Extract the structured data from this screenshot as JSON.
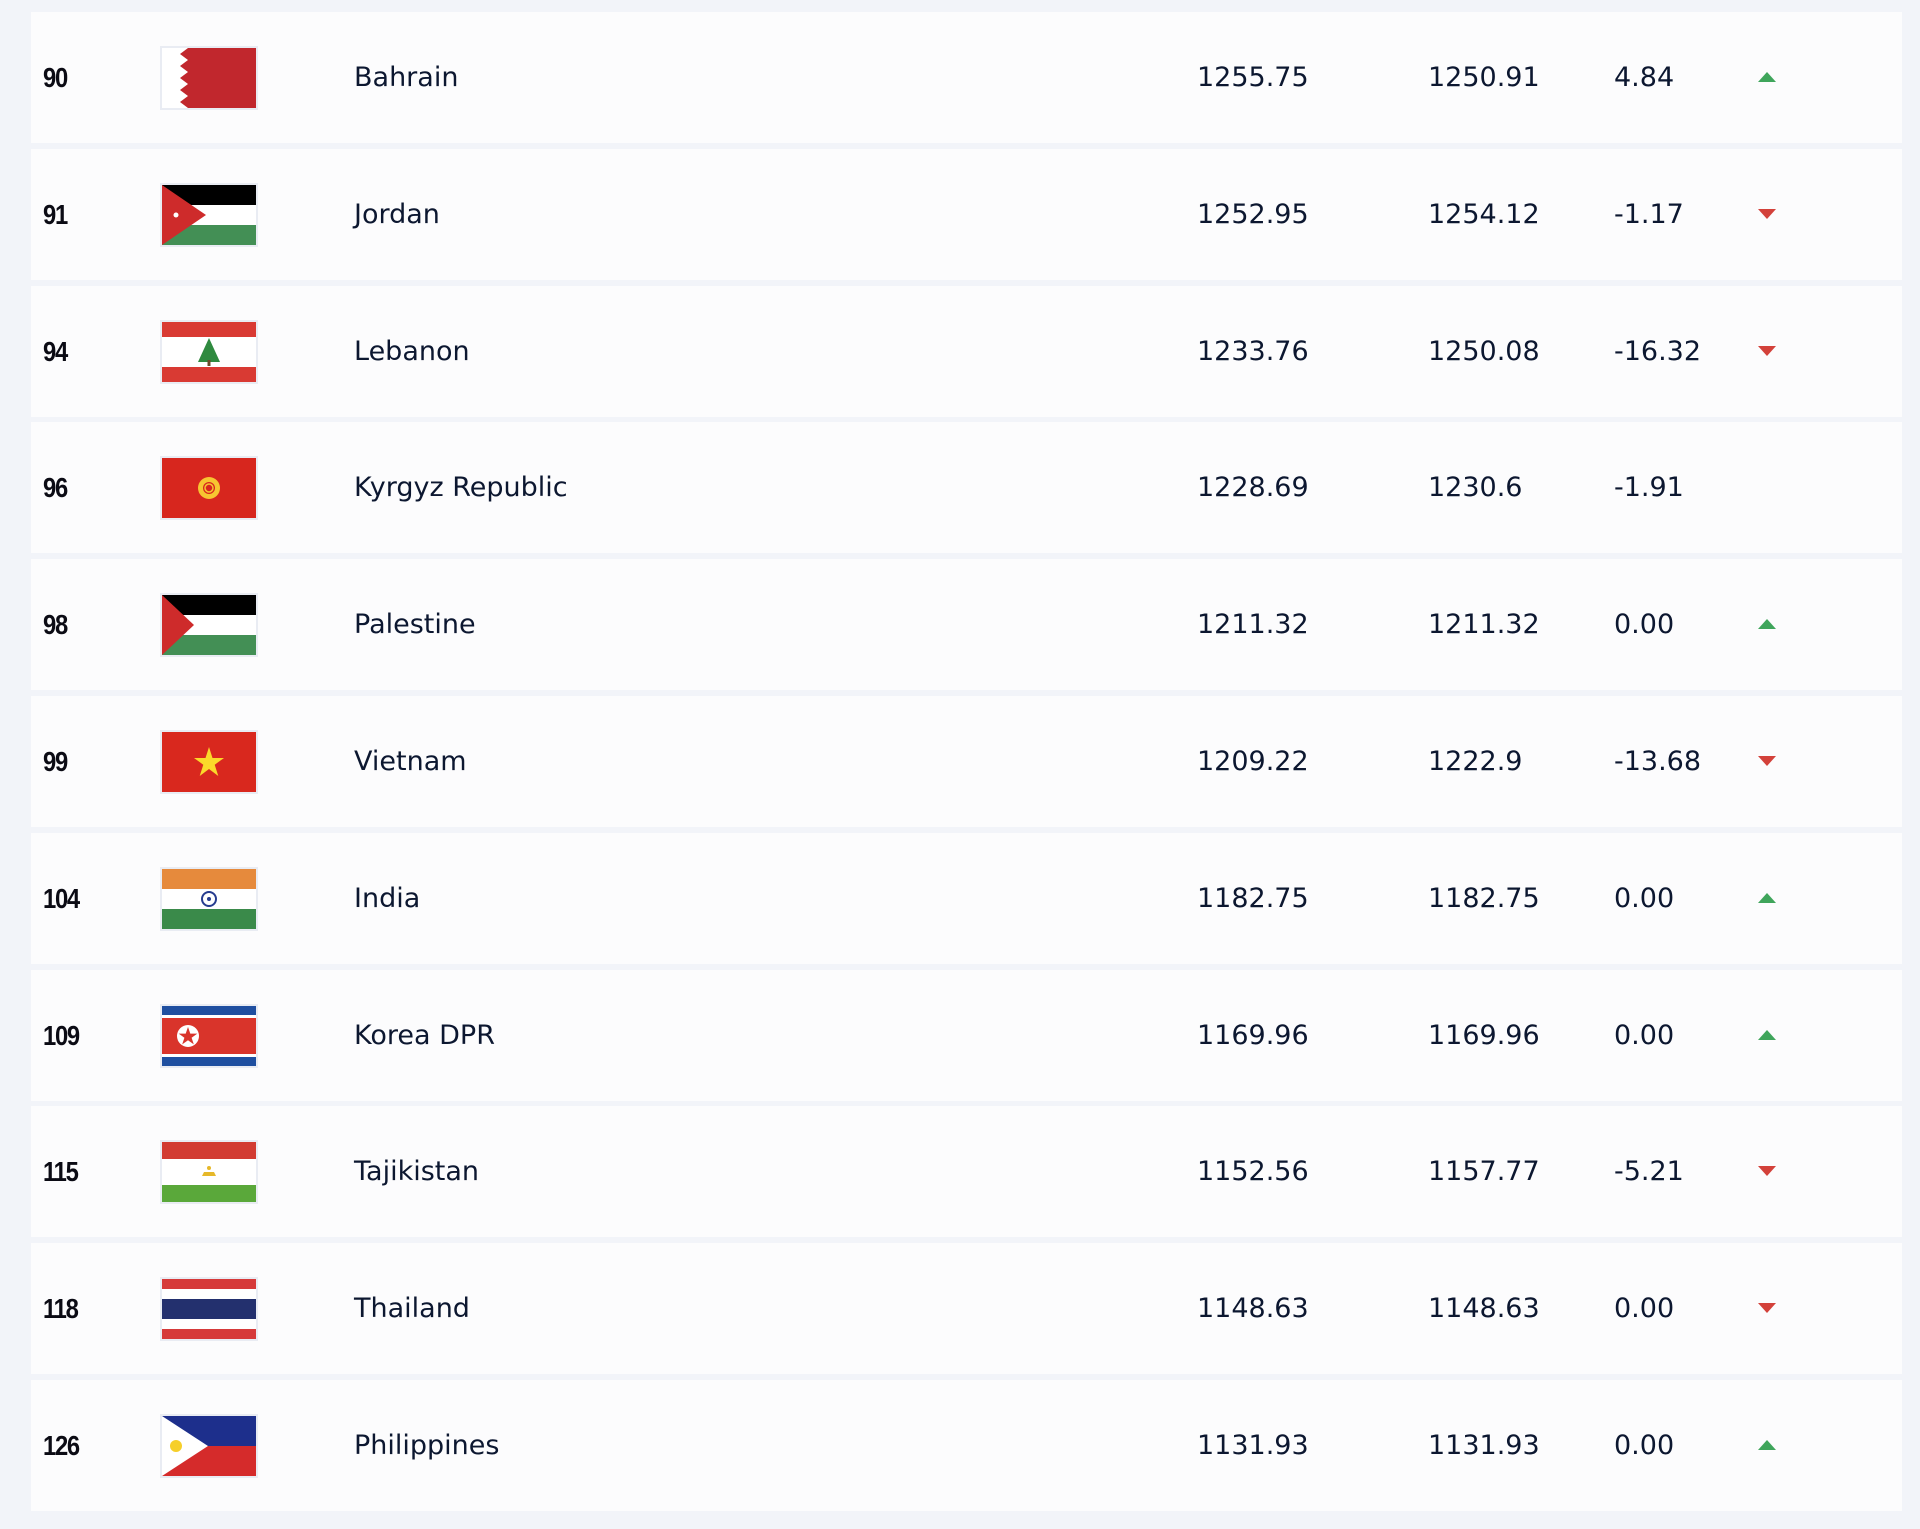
{
  "colors": {
    "up": "#3fa55b",
    "down": "#d3413a",
    "text": "#0c1730"
  },
  "rows": [
    {
      "rank": "90",
      "country": "Bahrain",
      "flag": "bahrain-flag",
      "total_points": "1255.75",
      "previous_points": "1250.91",
      "diff": "4.84",
      "trend": "up"
    },
    {
      "rank": "91",
      "country": "Jordan",
      "flag": "jordan-flag",
      "total_points": "1252.95",
      "previous_points": "1254.12",
      "diff": "-1.17",
      "trend": "down"
    },
    {
      "rank": "94",
      "country": "Lebanon",
      "flag": "lebanon-flag",
      "total_points": "1233.76",
      "previous_points": "1250.08",
      "diff": "-16.32",
      "trend": "down"
    },
    {
      "rank": "96",
      "country": "Kyrgyz Republic",
      "flag": "kyrgyz-flag",
      "total_points": "1228.69",
      "previous_points": "1230.6",
      "diff": "-1.91",
      "trend": "none"
    },
    {
      "rank": "98",
      "country": "Palestine",
      "flag": "palestine-flag",
      "total_points": "1211.32",
      "previous_points": "1211.32",
      "diff": "0.00",
      "trend": "up"
    },
    {
      "rank": "99",
      "country": "Vietnam",
      "flag": "vietnam-flag",
      "total_points": "1209.22",
      "previous_points": "1222.9",
      "diff": "-13.68",
      "trend": "down"
    },
    {
      "rank": "104",
      "country": "India",
      "flag": "india-flag",
      "total_points": "1182.75",
      "previous_points": "1182.75",
      "diff": "0.00",
      "trend": "up"
    },
    {
      "rank": "109",
      "country": "Korea DPR",
      "flag": "korea-dpr-flag",
      "total_points": "1169.96",
      "previous_points": "1169.96",
      "diff": "0.00",
      "trend": "up"
    },
    {
      "rank": "115",
      "country": "Tajikistan",
      "flag": "tajikistan-flag",
      "total_points": "1152.56",
      "previous_points": "1157.77",
      "diff": "-5.21",
      "trend": "down"
    },
    {
      "rank": "118",
      "country": "Thailand",
      "flag": "thailand-flag",
      "total_points": "1148.63",
      "previous_points": "1148.63",
      "diff": "0.00",
      "trend": "down"
    },
    {
      "rank": "126",
      "country": "Philippines",
      "flag": "philippines-flag",
      "total_points": "1131.93",
      "previous_points": "1131.93",
      "diff": "0.00",
      "trend": "up"
    }
  ]
}
